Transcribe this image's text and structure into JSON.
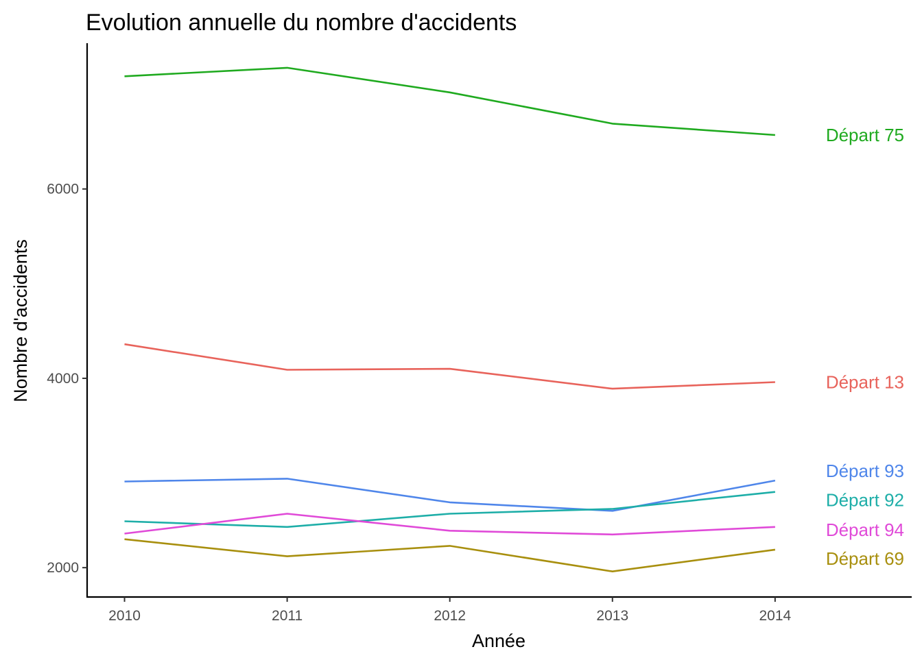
{
  "chart_data": {
    "type": "line",
    "title": "Evolution annuelle du nombre d'accidents",
    "xlabel": "Année",
    "ylabel": "Nombre d'accidents",
    "x": [
      2010,
      2011,
      2012,
      2013,
      2014
    ],
    "x_tick_labels": [
      "2010",
      "2011",
      "2012",
      "2013",
      "2014"
    ],
    "xlim": [
      2009.77,
      2014.84
    ],
    "y_ticks": [
      2000,
      4000,
      6000
    ],
    "y_tick_labels": [
      "2000",
      "4000",
      "6000"
    ],
    "ylim": [
      1690,
      7540
    ],
    "grid": false,
    "legend": "direct labels at right end of each line",
    "series": [
      {
        "name": "Départ 75",
        "color": "#1faa1f",
        "values": [
          7190,
          7280,
          7020,
          6690,
          6570
        ]
      },
      {
        "name": "Départ 13",
        "color": "#e8635b",
        "values": [
          4360,
          4090,
          4100,
          3890,
          3960
        ]
      },
      {
        "name": "Départ 93",
        "color": "#4f86ea",
        "values": [
          2910,
          2940,
          2690,
          2600,
          2920
        ]
      },
      {
        "name": "Départ 92",
        "color": "#1eaea8",
        "values": [
          2490,
          2430,
          2570,
          2620,
          2800
        ]
      },
      {
        "name": "Départ 94",
        "color": "#e04ad8",
        "values": [
          2360,
          2570,
          2390,
          2350,
          2430
        ]
      },
      {
        "name": "Départ 69",
        "color": "#a88f0e",
        "values": [
          2300,
          2120,
          2230,
          1960,
          2190
        ]
      }
    ]
  }
}
